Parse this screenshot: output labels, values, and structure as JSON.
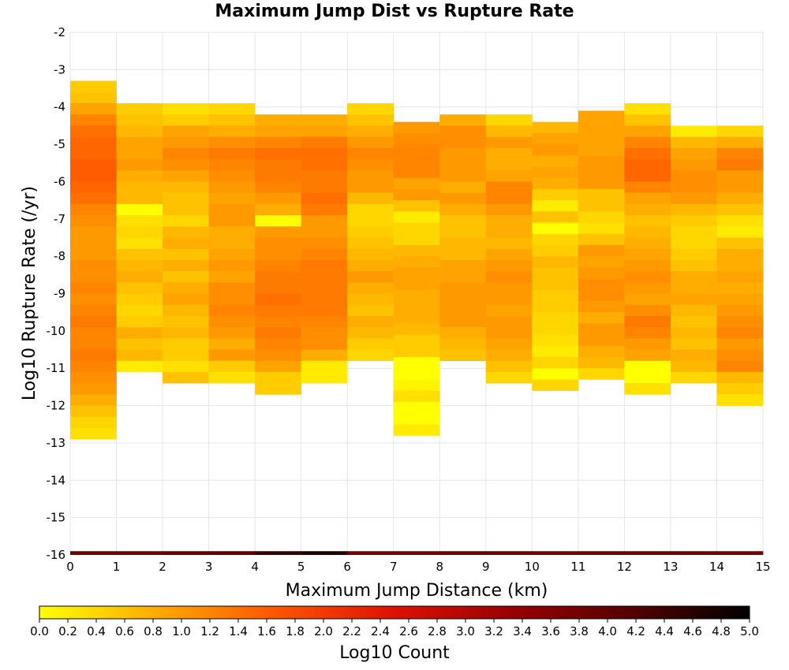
{
  "chart_data": {
    "type": "heatmap",
    "title": "Maximum Jump Dist vs Rupture Rate",
    "xlabel": "Maximum Jump Distance (km)",
    "ylabel": "Log10 Rupture Rate (/yr)",
    "xlim": [
      0,
      15
    ],
    "ylim": [
      -16,
      -2
    ],
    "x_ticks": [
      "0",
      "1",
      "2",
      "3",
      "4",
      "5",
      "6",
      "7",
      "8",
      "9",
      "10",
      "11",
      "12",
      "13",
      "14",
      "15"
    ],
    "y_ticks": [
      "-2",
      "-3",
      "-4",
      "-5",
      "-6",
      "-7",
      "-8",
      "-9",
      "-10",
      "-11",
      "-12",
      "-13",
      "-14",
      "-15",
      "-16"
    ],
    "x_bin_width": 1,
    "y_bin_height": 0.3,
    "grid": true,
    "colorbar": {
      "label": "Log10 Count",
      "min": 0.0,
      "max": 5.0,
      "ticks": [
        "0.0",
        "0.2",
        "0.4",
        "0.6",
        "0.8",
        "1.0",
        "1.2",
        "1.4",
        "1.6",
        "1.8",
        "2.0",
        "2.2",
        "2.4",
        "2.6",
        "2.8",
        "3.0",
        "3.2",
        "3.4",
        "3.6",
        "3.8",
        "4.0",
        "4.2",
        "4.4",
        "4.6",
        "4.8",
        "5.0"
      ],
      "colors": [
        "#ffff00",
        "#ffaa00",
        "#ff5500",
        "#dd1100",
        "#990000",
        "#550000",
        "#000000"
      ]
    },
    "cells": [
      {
        "x": 0,
        "y_start": -3.3,
        "values": [
          0.5,
          0.6,
          0.9,
          1.2,
          1.4,
          1.5,
          1.5,
          1.6,
          1.6,
          1.5,
          1.4,
          1.2,
          1.1,
          1.0,
          1.0,
          1.0,
          1.1,
          1.1,
          1.2,
          1.1,
          1.2,
          1.3,
          1.2,
          1.2,
          1.3,
          1.2,
          1.1,
          1.0,
          0.8,
          0.6,
          0.4,
          0.3
        ]
      },
      {
        "x": 1,
        "y_start": -3.9,
        "values": [
          0.5,
          0.6,
          0.7,
          0.9,
          0.9,
          1.0,
          0.8,
          0.7,
          0.7,
          0.0,
          0.3,
          0.4,
          0.3,
          0.6,
          0.7,
          0.8,
          0.6,
          0.5,
          0.4,
          0.5,
          0.8,
          0.6,
          0.7,
          0.2
        ]
      },
      {
        "x": 2,
        "y_start": -3.9,
        "values": [
          0.3,
          0.5,
          0.9,
          1.0,
          1.2,
          1.1,
          0.9,
          0.7,
          0.6,
          0.6,
          0.4,
          0.7,
          0.8,
          0.6,
          0.8,
          0.6,
          0.8,
          0.9,
          0.7,
          0.6,
          0.7,
          0.5,
          0.5,
          0.3,
          0.6
        ]
      },
      {
        "x": 3,
        "y_start": -3.9,
        "values": [
          0.4,
          0.6,
          0.8,
          1.1,
          1.3,
          1.2,
          1.1,
          1.0,
          0.9,
          1.0,
          1.0,
          0.8,
          0.8,
          0.9,
          1.0,
          0.9,
          1.1,
          1.1,
          1.2,
          1.1,
          1.0,
          0.8,
          1.0,
          0.5,
          0.3
        ]
      },
      {
        "x": 4,
        "y_start": -4.2,
        "values": [
          0.8,
          0.9,
          1.2,
          1.4,
          1.3,
          1.3,
          1.2,
          1.0,
          0.8,
          0.0,
          1.0,
          1.1,
          1.1,
          1.2,
          1.3,
          1.3,
          1.4,
          1.3,
          1.2,
          1.3,
          1.2,
          1.1,
          0.9,
          0.5,
          0.5
        ]
      },
      {
        "x": 5,
        "y_start": -4.2,
        "values": [
          0.8,
          0.9,
          1.3,
          1.4,
          1.4,
          1.3,
          1.3,
          1.4,
          1.3,
          1.0,
          1.0,
          1.1,
          1.2,
          1.3,
          1.3,
          1.3,
          1.3,
          1.3,
          1.2,
          1.1,
          1.1,
          0.8,
          0.2,
          0.2
        ]
      },
      {
        "x": 6,
        "y_start": -3.9,
        "values": [
          0.4,
          0.6,
          0.8,
          1.0,
          1.2,
          1.1,
          1.0,
          1.0,
          0.7,
          0.4,
          0.4,
          0.5,
          0.6,
          0.7,
          0.8,
          1.0,
          0.8,
          0.7,
          0.6,
          0.8,
          0.7,
          0.5,
          0.4
        ]
      },
      {
        "x": 7,
        "y_start": -4.4,
        "values": [
          1.0,
          1.1,
          1.2,
          1.2,
          1.2,
          0.9,
          1.0,
          0.6,
          0.2,
          0.4,
          0.4,
          0.7,
          0.8,
          0.9,
          0.9,
          0.8,
          0.8,
          0.8,
          0.7,
          0.5,
          0.5,
          0.0,
          0.0,
          0.1,
          0.3,
          0.0,
          0.0,
          0.2
        ]
      },
      {
        "x": 8,
        "y_start": -4.2,
        "values": [
          0.8,
          1.1,
          1.1,
          1.0,
          1.0,
          1.0,
          0.8,
          1.0,
          0.8,
          0.6,
          0.6,
          0.7,
          0.7,
          0.9,
          0.9,
          1.0,
          1.0,
          1.0,
          1.0,
          0.8,
          0.7,
          0.6
        ]
      },
      {
        "x": 9,
        "y_start": -4.2,
        "values": [
          0.4,
          0.7,
          1.0,
          0.8,
          0.8,
          0.9,
          1.2,
          1.2,
          1.0,
          0.8,
          0.8,
          0.7,
          0.9,
          1.0,
          1.1,
          1.0,
          1.0,
          0.9,
          1.0,
          1.0,
          0.9,
          0.8,
          0.6,
          0.4
        ]
      },
      {
        "x": 10,
        "y_start": -4.4,
        "values": [
          0.7,
          0.9,
          1.0,
          0.8,
          0.9,
          0.8,
          0.5,
          0.2,
          0.6,
          0.0,
          0.4,
          0.5,
          0.7,
          0.6,
          0.6,
          0.5,
          0.5,
          0.4,
          0.4,
          0.3,
          0.2,
          0.4,
          0.0,
          0.4
        ]
      },
      {
        "x": 11,
        "y_start": -4.1,
        "values": [
          0.9,
          0.9,
          0.9,
          0.9,
          1.0,
          1.0,
          1.0,
          0.6,
          0.6,
          0.4,
          0.3,
          0.6,
          1.0,
          0.9,
          1.0,
          1.1,
          1.1,
          1.0,
          0.8,
          1.0,
          1.0,
          0.8,
          0.7,
          0.4
        ]
      },
      {
        "x": 12,
        "y_start": -3.9,
        "values": [
          0.3,
          0.6,
          0.9,
          1.2,
          1.4,
          1.5,
          1.5,
          1.2,
          0.9,
          0.8,
          0.6,
          0.7,
          0.8,
          0.9,
          1.0,
          1.1,
          1.0,
          0.9,
          1.1,
          1.3,
          1.2,
          1.0,
          0.9,
          0.0,
          0.0,
          0.3
        ]
      },
      {
        "x": 13,
        "y_start": -4.5,
        "values": [
          0.2,
          0.7,
          0.9,
          1.0,
          1.1,
          1.1,
          1.0,
          0.7,
          0.5,
          0.4,
          0.4,
          0.5,
          0.6,
          0.8,
          0.8,
          0.9,
          0.7,
          0.6,
          0.7,
          0.6,
          0.8,
          0.7,
          0.4
        ]
      },
      {
        "x": 14,
        "y_start": -4.5,
        "values": [
          0.4,
          0.8,
          1.2,
          1.3,
          1.0,
          1.0,
          0.8,
          0.6,
          0.3,
          0.2,
          0.6,
          0.8,
          0.8,
          0.9,
          0.8,
          0.9,
          1.0,
          1.1,
          1.2,
          1.0,
          1.1,
          1.2,
          0.7,
          0.5,
          0.3
        ]
      }
    ]
  }
}
